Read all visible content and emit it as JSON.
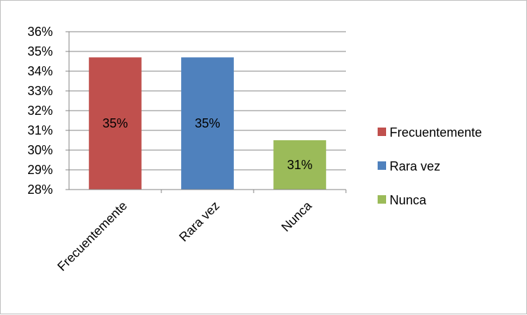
{
  "chart_data": {
    "type": "bar",
    "categories": [
      "Frecuentemente",
      "Rara vez",
      "Nunca"
    ],
    "values": [
      34.7,
      34.7,
      30.5
    ],
    "data_labels": [
      "35%",
      "35%",
      "31%"
    ],
    "colors": [
      "#c0504d",
      "#4f81bd",
      "#9bbb59"
    ],
    "ylim": [
      28,
      36
    ],
    "yticks": [
      "28%",
      "29%",
      "30%",
      "31%",
      "32%",
      "33%",
      "34%",
      "35%",
      "36%"
    ],
    "grid": true,
    "legend_position": "right",
    "legend": [
      "Frecuentemente",
      "Rara vez",
      "Nunca"
    ]
  }
}
